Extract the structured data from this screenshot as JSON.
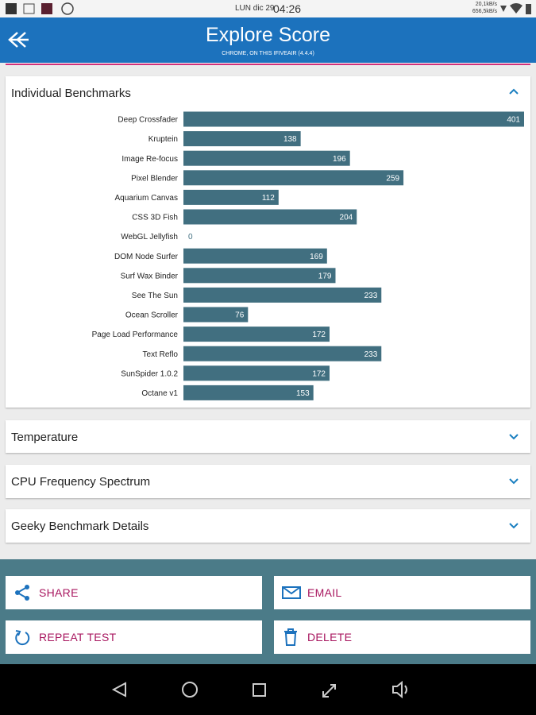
{
  "status_bar": {
    "date": "LUN dic 29",
    "time": "04:26",
    "upload": "20,1kB/s",
    "download": "656,5kB/s"
  },
  "header": {
    "title": "Explore Score",
    "subtitle": "CHROME, ON THIS IFIVEAIR (4.4.4)"
  },
  "chart_data": {
    "type": "bar",
    "title": "Individual Benchmarks",
    "categories": [
      "Deep Crossfader",
      "Kruptein",
      "Image Re-focus",
      "Pixel Blender",
      "Aquarium Canvas",
      "CSS 3D Fish",
      "WebGL Jellyfish",
      "DOM Node Surfer",
      "Surf Wax Binder",
      "See The Sun",
      "Ocean Scroller",
      "Page Load Performance",
      "Text Reflo",
      "SunSpider 1.0.2",
      "Octane v1"
    ],
    "values": [
      401,
      138,
      196,
      259,
      112,
      204,
      0,
      169,
      179,
      233,
      76,
      172,
      233,
      172,
      153
    ],
    "color": "#416f80"
  },
  "sections": [
    {
      "title": "Temperature"
    },
    {
      "title": "CPU Frequency Spectrum"
    },
    {
      "title": "Geeky Benchmark Details"
    }
  ],
  "buttons": [
    {
      "label": "SHARE"
    },
    {
      "label": "EMAIL"
    },
    {
      "label": "REPEAT TEST"
    },
    {
      "label": "DELETE"
    }
  ]
}
